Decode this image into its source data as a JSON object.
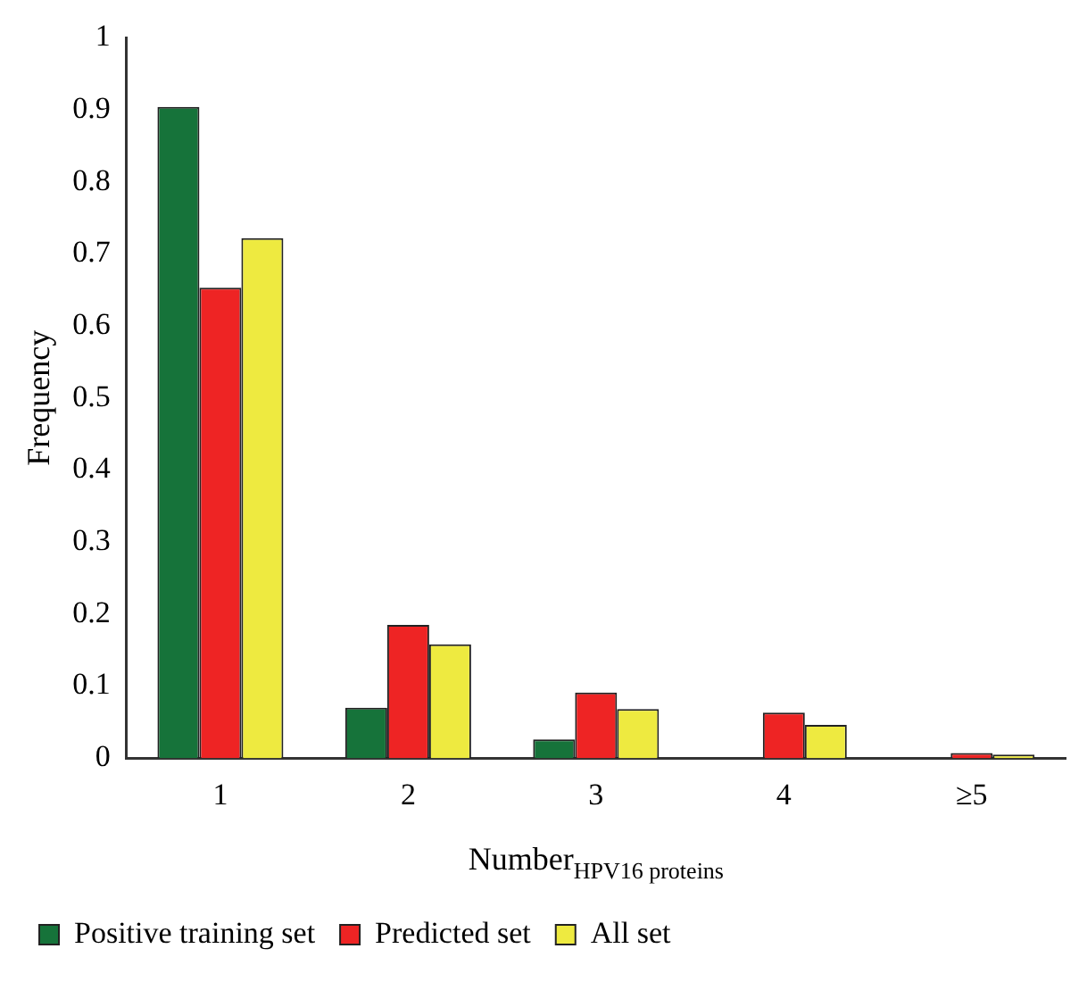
{
  "chart_data": {
    "type": "bar",
    "xlabel": "Number$_{HPV16 proteins}$",
    "ylabel": "Frequency",
    "categories": [
      "1",
      "2",
      "3",
      "4",
      "≥5"
    ],
    "series": [
      {
        "name": "Positive training set",
        "color": "#16733a",
        "values": [
          0.904,
          0.07,
          0.026,
          0,
          0
        ]
      },
      {
        "name": "Predicted set",
        "color": "#ee2424",
        "values": [
          0.653,
          0.185,
          0.091,
          0.063,
          0.007
        ]
      },
      {
        "name": "All set",
        "color": "#eeea40",
        "values": [
          0.722,
          0.158,
          0.068,
          0.046,
          0.005
        ]
      }
    ],
    "ylim": [
      0,
      1
    ],
    "yticks": [
      0,
      0.1,
      0.2,
      0.3,
      0.4,
      0.5,
      0.6,
      0.7,
      0.8,
      0.9,
      1
    ],
    "grid": false,
    "legend": "bottom"
  }
}
